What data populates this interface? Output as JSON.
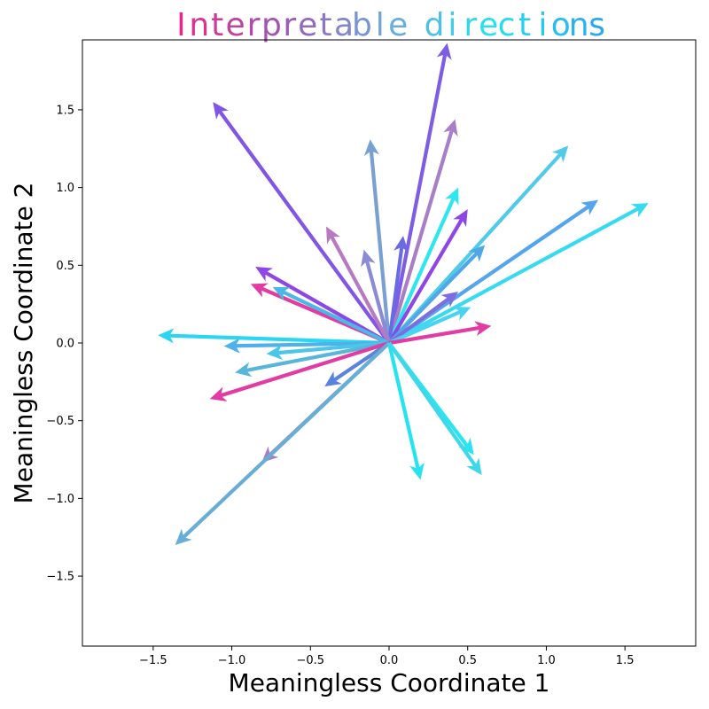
{
  "chart_data": {
    "type": "quiver",
    "title": "Interpretable directions",
    "title_gradient": [
      "#e7298a",
      "#9b59b6",
      "#6fa8dc",
      "#22e4f0",
      "#2aa8f0"
    ],
    "xlabel": "Meaningless Coordinate 1",
    "ylabel": "Meaningless Coordinate 2",
    "xlim": [
      -1.95,
      1.95
    ],
    "ylim": [
      -1.95,
      1.95
    ],
    "xticks": [
      -1.5,
      -1.0,
      -0.5,
      0.0,
      0.5,
      1.0,
      1.5
    ],
    "xtick_labels": [
      "−1.5",
      "−1.0",
      "−0.5",
      "0.0",
      "0.5",
      "1.0",
      "1.5"
    ],
    "yticks": [
      1.5,
      1.0,
      0.5,
      0.0,
      -0.5,
      -1.0,
      -1.5
    ],
    "ytick_labels": [
      "1.5",
      "1.0",
      "0.5",
      "0.0",
      "−0.5",
      "−1.0",
      "−1.5"
    ],
    "grid": false,
    "origin": [
      0,
      0
    ],
    "vectors": [
      {
        "dx": -1.12,
        "dy": 1.55,
        "color": "#8155e6"
      },
      {
        "dx": 0.37,
        "dy": 1.93,
        "color": "#7e5de6"
      },
      {
        "dx": -0.12,
        "dy": 1.31,
        "color": "#79a0d2"
      },
      {
        "dx": 0.42,
        "dy": 1.44,
        "color": "#a87ec6"
      },
      {
        "dx": 1.14,
        "dy": 1.27,
        "color": "#4fcae8"
      },
      {
        "dx": 1.33,
        "dy": 0.92,
        "color": "#55a4ee"
      },
      {
        "dx": 1.65,
        "dy": 0.9,
        "color": "#37daf0"
      },
      {
        "dx": 0.44,
        "dy": 1.0,
        "color": "#2ee6f0"
      },
      {
        "dx": 0.5,
        "dy": 0.86,
        "color": "#8e47e6"
      },
      {
        "dx": 0.09,
        "dy": 0.69,
        "color": "#6a6ae6"
      },
      {
        "dx": -0.16,
        "dy": 0.6,
        "color": "#8b8ad6"
      },
      {
        "dx": -0.4,
        "dy": 0.75,
        "color": "#b77ac2"
      },
      {
        "dx": 0.61,
        "dy": 0.63,
        "color": "#4fa6e8"
      },
      {
        "dx": -0.85,
        "dy": 0.49,
        "color": "#8e47e6"
      },
      {
        "dx": -0.88,
        "dy": 0.38,
        "color": "#e23ba3"
      },
      {
        "dx": -0.74,
        "dy": 0.36,
        "color": "#4ab7e4"
      },
      {
        "dx": 0.44,
        "dy": 0.33,
        "color": "#7c6ee0"
      },
      {
        "dx": 0.52,
        "dy": 0.23,
        "color": "#4ad3f0"
      },
      {
        "dx": 0.65,
        "dy": 0.11,
        "color": "#e23ba3"
      },
      {
        "dx": -1.47,
        "dy": 0.05,
        "color": "#2ad6f2"
      },
      {
        "dx": -1.05,
        "dy": -0.02,
        "color": "#4fb0ea"
      },
      {
        "dx": -0.78,
        "dy": -0.07,
        "color": "#4bc6ea"
      },
      {
        "dx": -0.98,
        "dy": -0.19,
        "color": "#58b6dc"
      },
      {
        "dx": -0.41,
        "dy": -0.28,
        "color": "#5a82e0"
      },
      {
        "dx": -1.14,
        "dy": -0.36,
        "color": "#e23ba3"
      },
      {
        "dx": -0.81,
        "dy": -0.77,
        "color": "#a780c2"
      },
      {
        "dx": -1.36,
        "dy": -1.3,
        "color": "#66aed6"
      },
      {
        "dx": 0.2,
        "dy": -0.88,
        "color": "#25e4f0"
      },
      {
        "dx": 0.54,
        "dy": -0.72,
        "color": "#2ae4f0"
      },
      {
        "dx": 0.59,
        "dy": -0.85,
        "color": "#3fd8ea"
      }
    ]
  }
}
